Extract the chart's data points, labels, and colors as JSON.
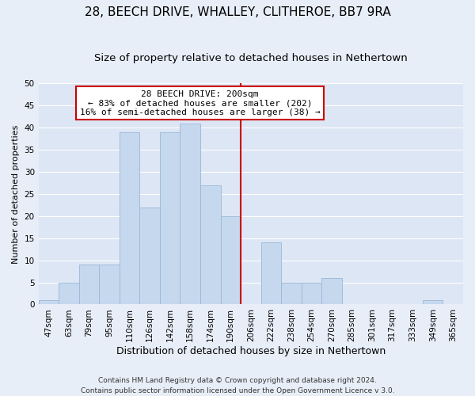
{
  "title": "28, BEECH DRIVE, WHALLEY, CLITHEROE, BB7 9RA",
  "subtitle": "Size of property relative to detached houses in Nethertown",
  "xlabel": "Distribution of detached houses by size in Nethertown",
  "ylabel": "Number of detached properties",
  "footer_line1": "Contains HM Land Registry data © Crown copyright and database right 2024.",
  "footer_line2": "Contains public sector information licensed under the Open Government Licence v 3.0.",
  "bin_labels": [
    "47sqm",
    "63sqm",
    "79sqm",
    "95sqm",
    "110sqm",
    "126sqm",
    "142sqm",
    "158sqm",
    "174sqm",
    "190sqm",
    "206sqm",
    "222sqm",
    "238sqm",
    "254sqm",
    "270sqm",
    "285sqm",
    "301sqm",
    "317sqm",
    "333sqm",
    "349sqm",
    "365sqm"
  ],
  "bar_heights": [
    1,
    5,
    9,
    9,
    39,
    22,
    39,
    41,
    27,
    20,
    0,
    14,
    5,
    5,
    6,
    0,
    0,
    0,
    0,
    1,
    0
  ],
  "bar_color": "#c5d8ee",
  "bar_edge_color": "#9ab8d8",
  "vline_x": 9.5,
  "vline_color": "#cc0000",
  "annotation_line1": "28 BEECH DRIVE: 200sqm",
  "annotation_line2": "← 83% of detached houses are smaller (202)",
  "annotation_line3": "16% of semi-detached houses are larger (38) →",
  "ylim": [
    0,
    50
  ],
  "yticks": [
    0,
    5,
    10,
    15,
    20,
    25,
    30,
    35,
    40,
    45,
    50
  ],
  "background_color": "#e8eef8",
  "plot_bg_color": "#dde6f4",
  "grid_color": "#ffffff",
  "title_fontsize": 11,
  "subtitle_fontsize": 9.5,
  "xlabel_fontsize": 9,
  "ylabel_fontsize": 8,
  "tick_fontsize": 7.5,
  "annotation_fontsize": 8,
  "footer_fontsize": 6.5
}
